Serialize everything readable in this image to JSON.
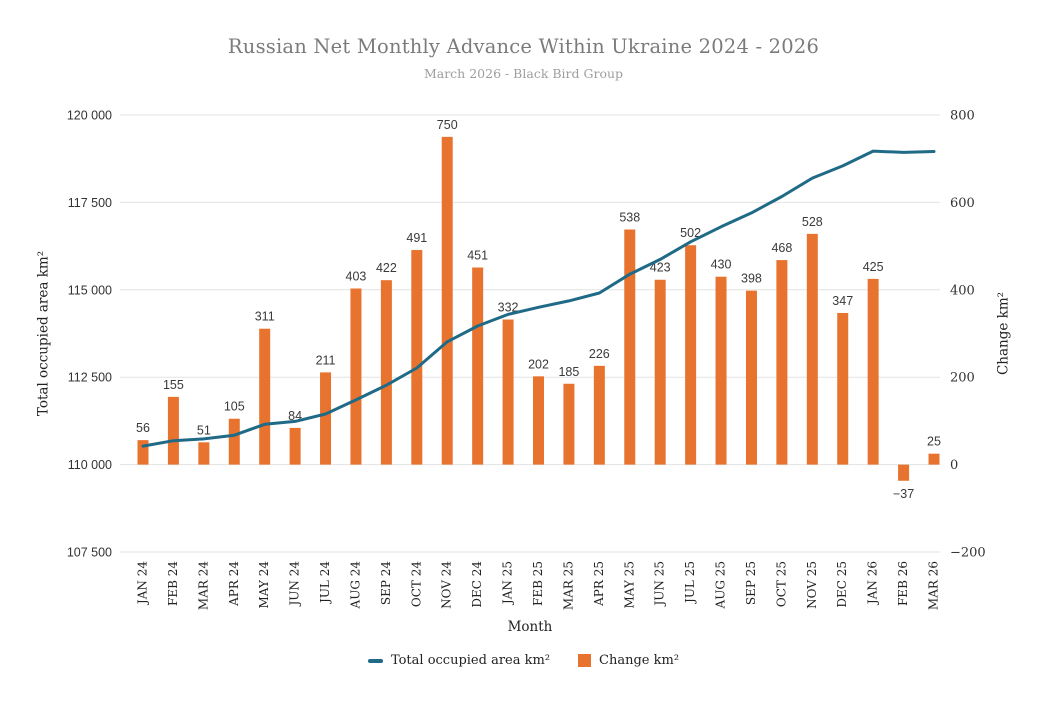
{
  "header": {
    "title": "Russian Net Monthly Advance Within Ukraine 2024 - 2026",
    "subtitle": "March 2026 - Black Bird Group"
  },
  "colors": {
    "bar": "#E8732E",
    "line": "#1F6A87",
    "grid": "#E3E3E3",
    "title_text": "#7B7B7B",
    "subtitle_text": "#9E9E9E",
    "data_label": "#3A3A3A"
  },
  "chart_data": {
    "type": "combo",
    "grid": true,
    "legend_position": "bottom",
    "categories": [
      "JAN 24",
      "FEB 24",
      "MAR 24",
      "APR 24",
      "MAY 24",
      "JUN 24",
      "JUL 24",
      "AUG 24",
      "SEP 24",
      "OCT 24",
      "NOV 24",
      "DEC 24",
      "JAN 25",
      "FEB 25",
      "MAR 25",
      "APR 25",
      "MAY 25",
      "JUN 25",
      "JUL 25",
      "AUG 25",
      "SEP 25",
      "OCT 25",
      "NOV 25",
      "DEC 25",
      "JAN 26",
      "FEB 26",
      "MAR 26"
    ],
    "series": [
      {
        "name": "Total occupied area km²",
        "type": "line",
        "axis": "left",
        "color": "#1F6A87",
        "values": [
          110530,
          110685,
          110736,
          110841,
          111152,
          111236,
          111447,
          111850,
          112272,
          112763,
          113513,
          113964,
          114296,
          114498,
          114683,
          114909,
          115447,
          115870,
          116372,
          116802,
          117200,
          117668,
          118196,
          118543,
          118968,
          118931,
          118956
        ]
      },
      {
        "name": "Change km²",
        "type": "bar",
        "axis": "right",
        "color": "#E8732E",
        "values": [
          56,
          155,
          51,
          105,
          311,
          84,
          211,
          403,
          422,
          491,
          750,
          451,
          332,
          202,
          185,
          226,
          538,
          423,
          502,
          430,
          398,
          468,
          528,
          347,
          425,
          -37,
          25
        ],
        "data_labels": [
          "56",
          "155",
          "51",
          "105",
          "311",
          "84",
          "211",
          "403",
          "422",
          "491",
          "750",
          "451",
          "332",
          "202",
          "185",
          "226",
          "538",
          "423",
          "502",
          "430",
          "398",
          "468",
          "528",
          "347",
          "425",
          "−37",
          "25"
        ]
      }
    ],
    "left_axis": {
      "title": "Total occupied area km²",
      "min": 107500,
      "max": 120000,
      "tick_step": 2500,
      "tick_labels": [
        "120 000",
        "117 500",
        "115 000",
        "112 500",
        "110 000",
        "107 500"
      ]
    },
    "right_axis": {
      "title": "Change km²",
      "min": -200,
      "max": 800,
      "tick_step": 200,
      "tick_labels": [
        "800",
        "600",
        "400",
        "200",
        "0",
        "−200"
      ]
    },
    "x_axis": {
      "title": "Month"
    },
    "legend": [
      {
        "label": "Total occupied area km²",
        "swatch": "line"
      },
      {
        "label": "Change km²",
        "swatch": "square"
      }
    ]
  }
}
